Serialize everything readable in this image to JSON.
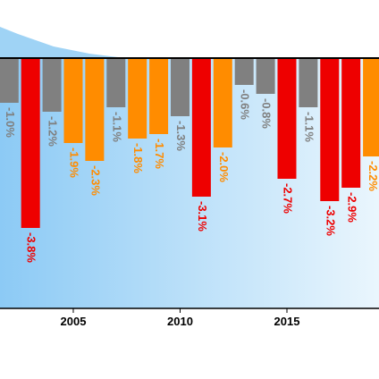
{
  "chart_data": {
    "type": "bar",
    "x": [
      2002,
      2003,
      2004,
      2005,
      2006,
      2007,
      2008,
      2009,
      2010,
      2011,
      2012,
      2013,
      2014,
      2015,
      2016,
      2017,
      2018,
      2019
    ],
    "values": [
      -1.0,
      -3.8,
      -1.2,
      -1.9,
      -2.3,
      -1.1,
      -1.8,
      -1.7,
      -1.3,
      -3.1,
      -2.0,
      -0.6,
      -0.8,
      -2.7,
      -1.1,
      -3.2,
      -2.9,
      -2.2
    ],
    "value_labels": [
      "-1.0%",
      "-3.8%",
      "-1.2%",
      "-1.9%",
      "-2.3%",
      "-1.1%",
      "-1.8%",
      "-1.7%",
      "-1.3%",
      "-3.1%",
      "-2.0%",
      "-0.6%",
      "-0.8%",
      "-2.7%",
      "-1.1%",
      "-3.2%",
      "-2.9%",
      "-2.2%"
    ],
    "colors": [
      "#808080",
      "#ee0000",
      "#808080",
      "#ff8c00",
      "#ff8c00",
      "#808080",
      "#ff8c00",
      "#ff8c00",
      "#808080",
      "#ee0000",
      "#ff8c00",
      "#808080",
      "#808080",
      "#ee0000",
      "#808080",
      "#ee0000",
      "#ee0000",
      "#ff8c00"
    ],
    "xlim": [
      2001.57,
      2019.31
    ],
    "xticks": [
      2005,
      2010,
      2015
    ],
    "ylim": [
      -5.6,
      1.3
    ]
  }
}
